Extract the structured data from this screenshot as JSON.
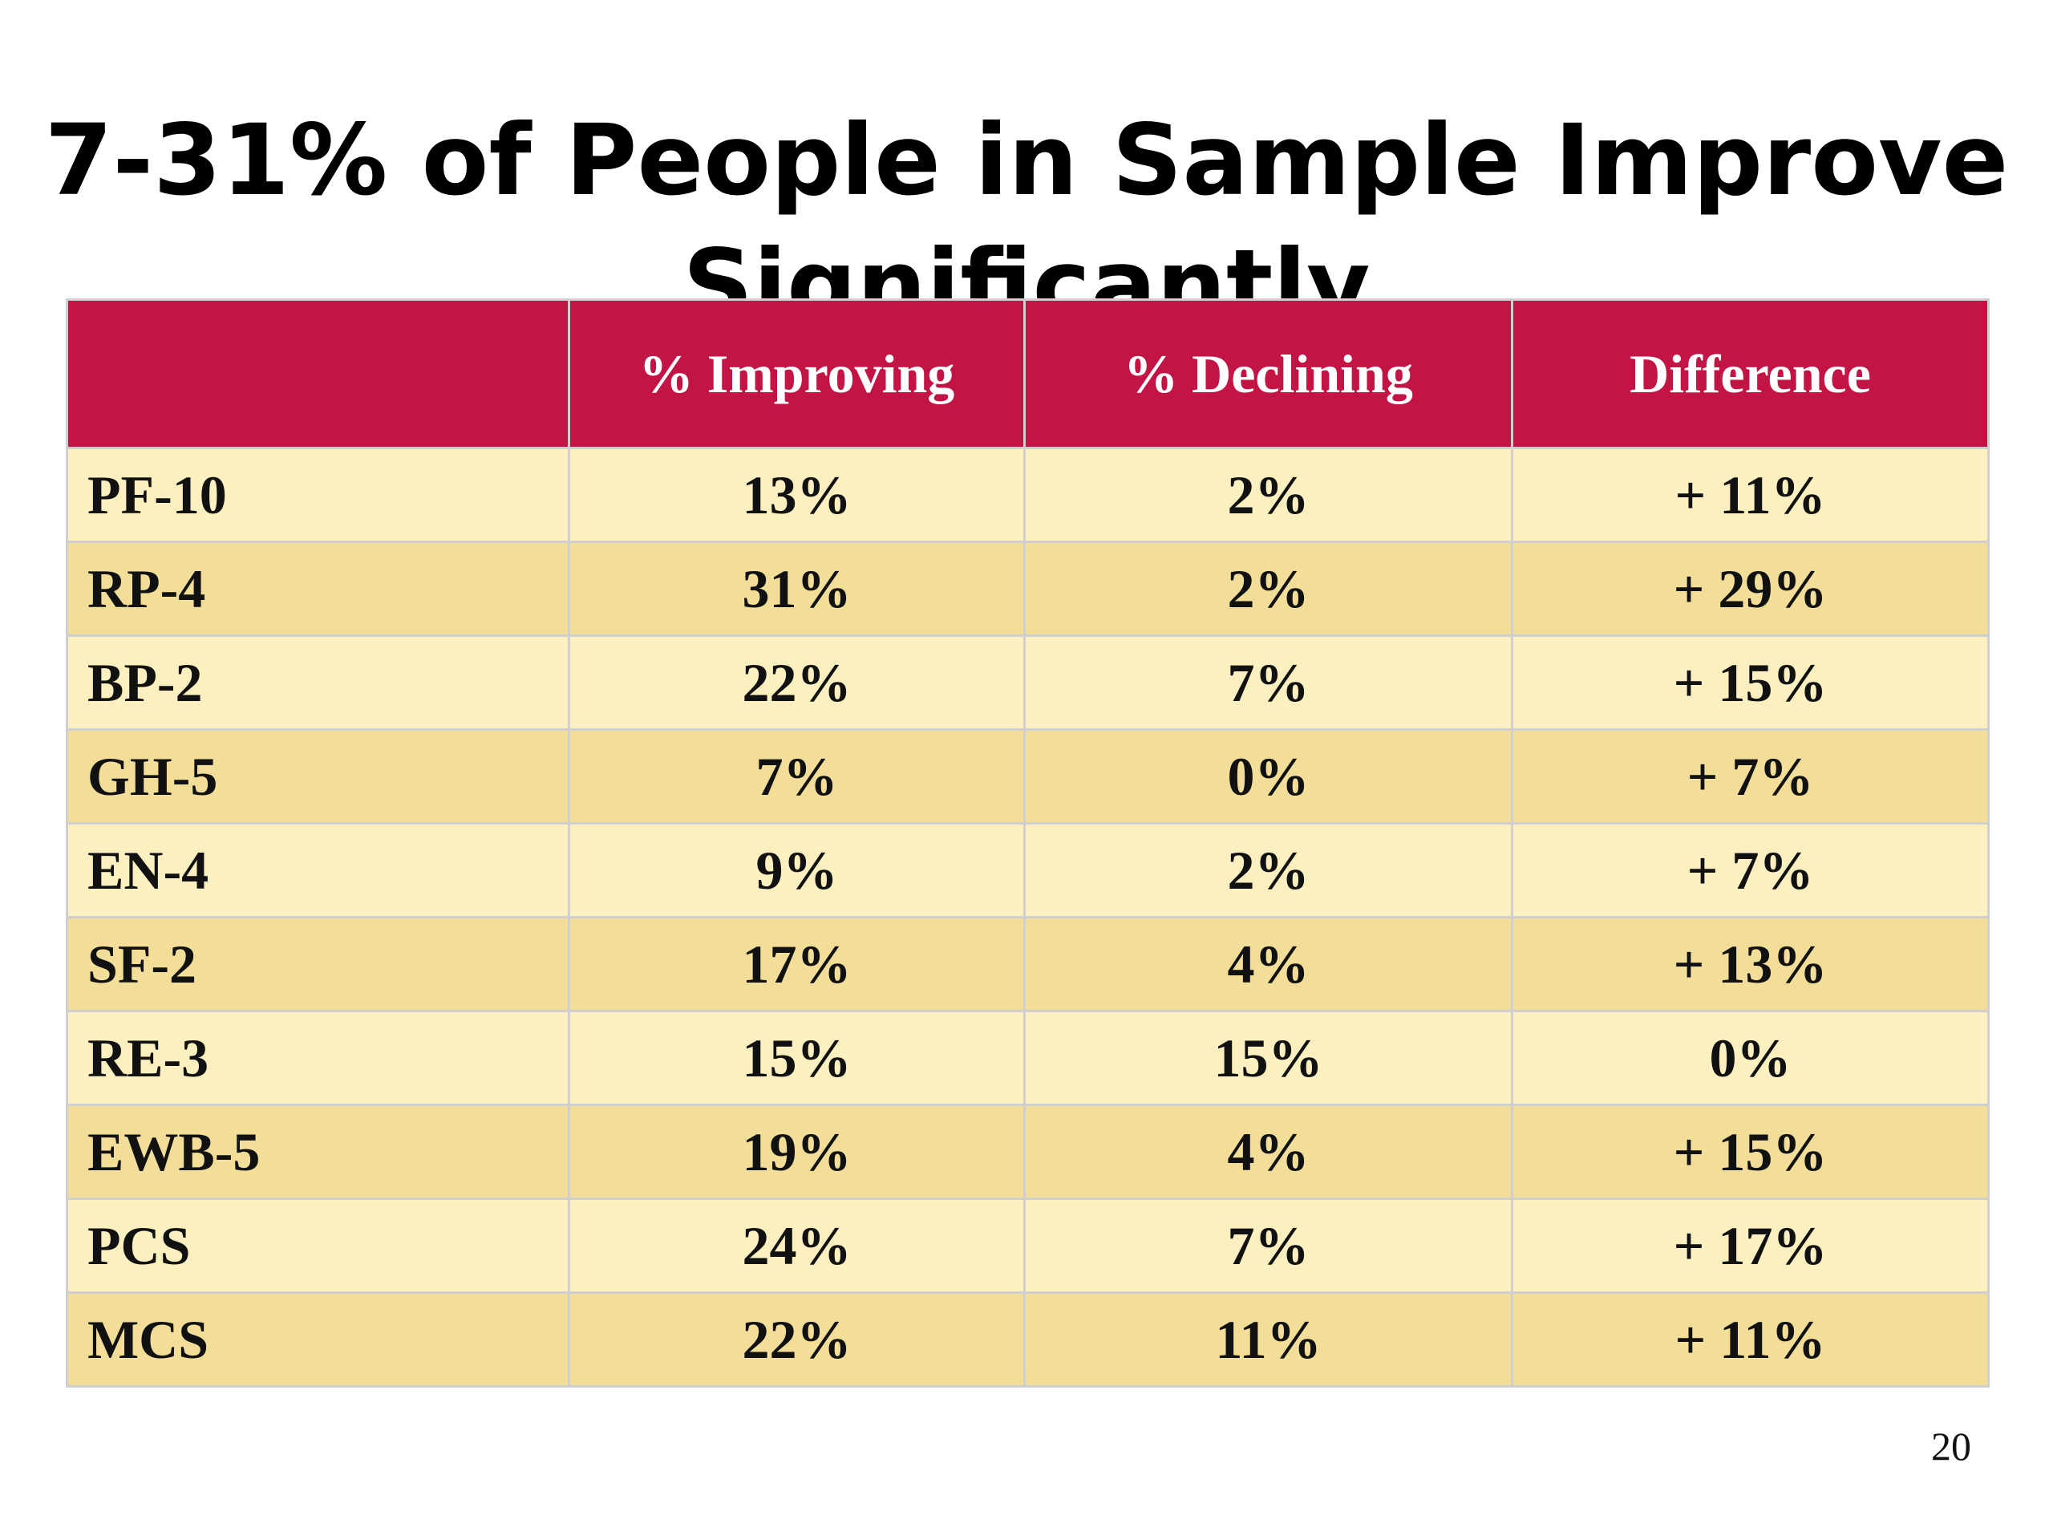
{
  "slide": {
    "title_line1": "7-31% of People in Sample Improve",
    "title_line2": "Significantly",
    "page_number": "20"
  },
  "table": {
    "headers": [
      "",
      "% Improving",
      "% Declining",
      "Difference"
    ],
    "rows": [
      [
        "PF-10",
        "13%",
        "2%",
        "+ 11%"
      ],
      [
        "RP-4",
        "31%",
        "2%",
        "+ 29%"
      ],
      [
        "BP-2",
        "22%",
        "7%",
        "+ 15%"
      ],
      [
        "GH-5",
        "7%",
        "0%",
        "+ 7%"
      ],
      [
        "EN-4",
        "9%",
        "2%",
        "+ 7%"
      ],
      [
        "SF-2",
        "17%",
        "4%",
        "+ 13%"
      ],
      [
        "RE-3",
        "15%",
        "15%",
        "0%"
      ],
      [
        "EWB-5",
        "19%",
        "4%",
        "+ 15%"
      ],
      [
        "PCS",
        "24%",
        "7%",
        "+ 17%"
      ],
      [
        "MCS",
        "22%",
        "11%",
        "+ 11%"
      ]
    ]
  },
  "colors": {
    "header_bg": "#c21545",
    "header_text": "#ffffff",
    "row_light": "#fdf0c0",
    "row_dark": "#f2de98",
    "grid": "#cfcfcf"
  }
}
